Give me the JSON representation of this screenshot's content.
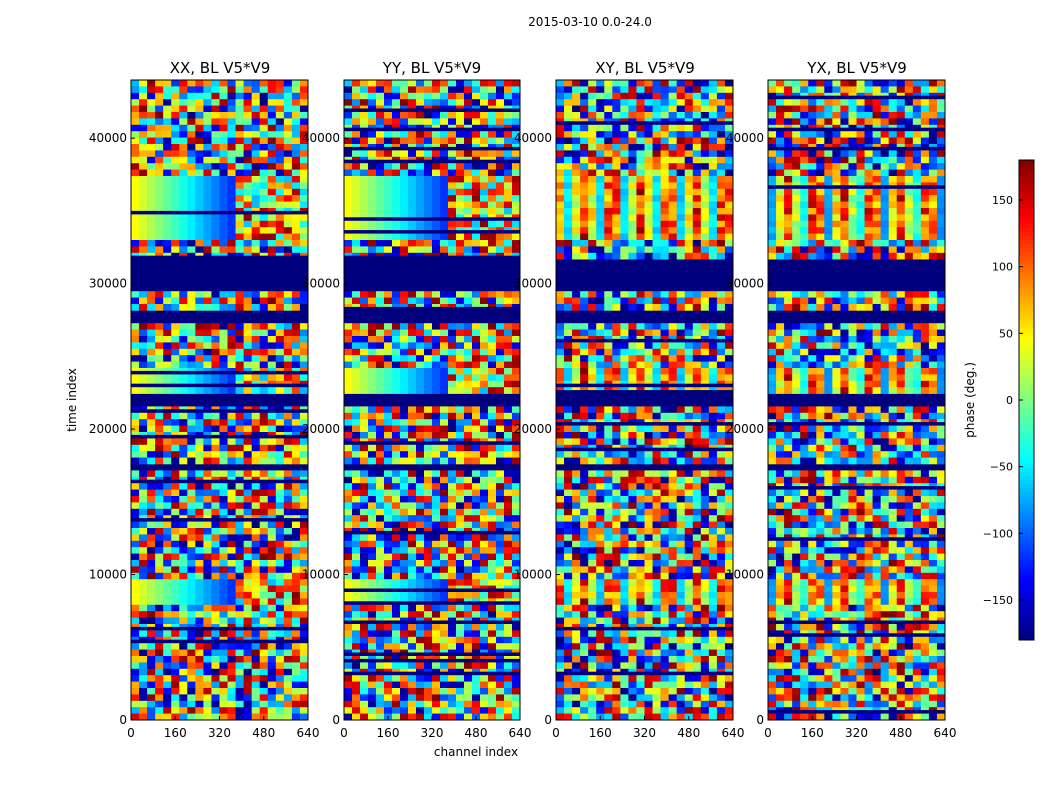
{
  "chart_data": {
    "type": "heatmap",
    "suptitle": "2015-03-10 0.0-24.0",
    "xlabel": "channel index",
    "ylabel": "time index",
    "xlim": [
      0,
      640
    ],
    "ylim": [
      0,
      44000
    ],
    "xticks": [
      0,
      160,
      320,
      480,
      640
    ],
    "yticks": [
      0,
      10000,
      20000,
      30000,
      40000
    ],
    "ytick_labels": [
      "0",
      "10000",
      "20000",
      "30000",
      "40000"
    ],
    "panels": [
      {
        "id": "xx",
        "title": "XX, BL V5*V9"
      },
      {
        "id": "yy",
        "title": "YY, BL V5*V9"
      },
      {
        "id": "xy",
        "title": "XY, BL V5*V9"
      },
      {
        "id": "yx",
        "title": "YX, BL V5*V9"
      }
    ],
    "colorbar": {
      "label": "phase (deg.)",
      "range": [
        -180,
        180
      ],
      "ticks": [
        150,
        100,
        50,
        0,
        -50,
        -100,
        -150
      ],
      "tick_labels": [
        "150",
        "100",
        "50",
        "0",
        "−50",
        "−100",
        "−150"
      ],
      "colormap": "jet"
    },
    "flagged_time_ranges": [
      [
        29500,
        31500
      ],
      [
        27200,
        28200
      ],
      [
        21700,
        22300
      ],
      [
        17000,
        17500
      ]
    ],
    "coherent_time_ranges": [
      [
        32800,
        37600
      ],
      [
        22300,
        24000
      ],
      [
        7800,
        9500
      ]
    ]
  },
  "colors": {
    "jet_low": "#00007f",
    "jet_high": "#7f0000"
  }
}
